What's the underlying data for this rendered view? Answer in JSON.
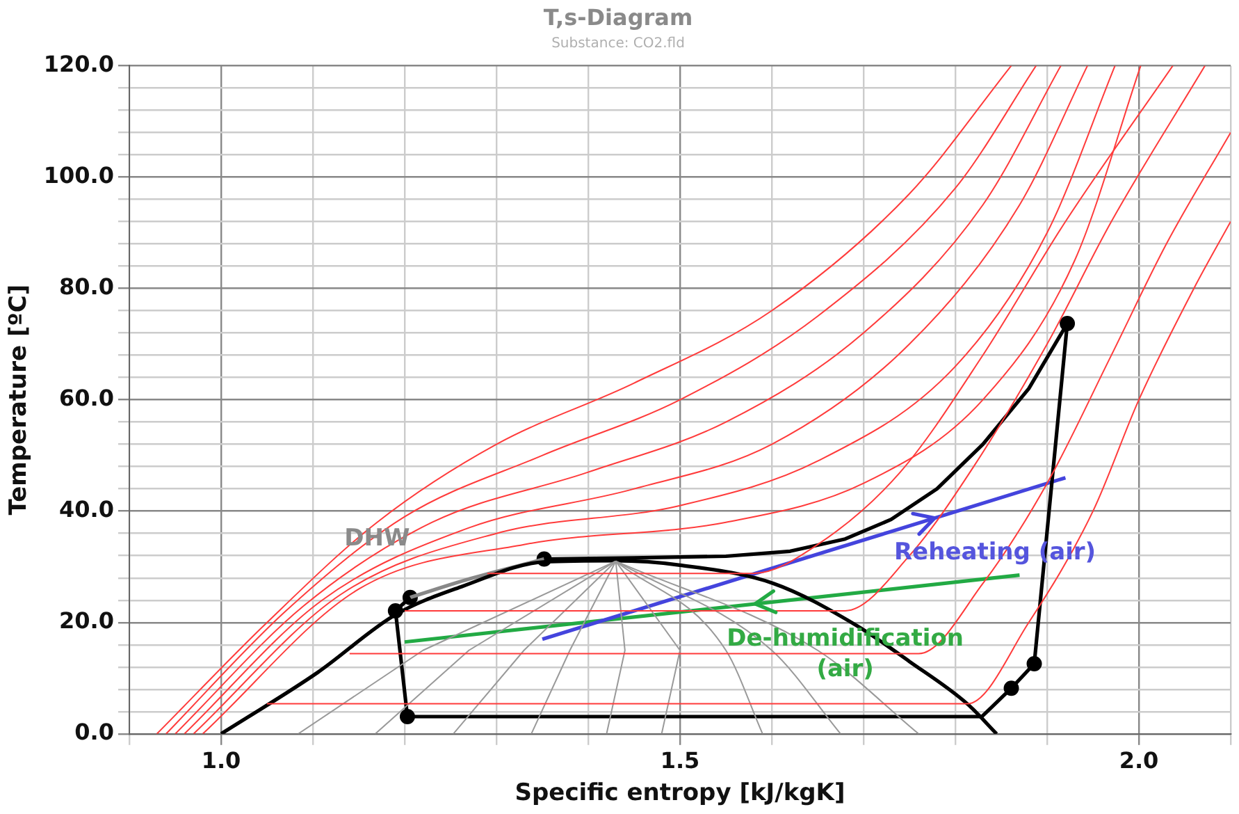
{
  "chart_data": {
    "type": "line",
    "title": "T,s-Diagram",
    "subtitle": "Substance: CO2.fld",
    "xlabel": "Specific entropy [kJ/kgK]",
    "ylabel": "Temperature [ºC]",
    "xlim": [
      0.9,
      2.1
    ],
    "ylim": [
      0,
      120
    ],
    "xticks": [
      {
        "value": 0.9,
        "label": null
      },
      {
        "value": 1.0,
        "label": "1.0"
      },
      {
        "value": 1.1,
        "label": null
      },
      {
        "value": 1.2,
        "label": null
      },
      {
        "value": 1.3,
        "label": null
      },
      {
        "value": 1.4,
        "label": null
      },
      {
        "value": 1.5,
        "label": "1.5"
      },
      {
        "value": 1.6,
        "label": null
      },
      {
        "value": 1.7,
        "label": null
      },
      {
        "value": 1.8,
        "label": null
      },
      {
        "value": 1.9,
        "label": null
      },
      {
        "value": 2.0,
        "label": "2.0"
      },
      {
        "value": 2.1,
        "label": null
      }
    ],
    "yticks": [
      {
        "value": 0,
        "label": "0.0"
      },
      {
        "value": 4,
        "label": null
      },
      {
        "value": 8,
        "label": null
      },
      {
        "value": 12,
        "label": null
      },
      {
        "value": 16,
        "label": null
      },
      {
        "value": 20,
        "label": "20.0"
      },
      {
        "value": 24,
        "label": null
      },
      {
        "value": 28,
        "label": null
      },
      {
        "value": 32,
        "label": null
      },
      {
        "value": 36,
        "label": null
      },
      {
        "value": 40,
        "label": "40.0"
      },
      {
        "value": 44,
        "label": null
      },
      {
        "value": 48,
        "label": null
      },
      {
        "value": 52,
        "label": null
      },
      {
        "value": 56,
        "label": null
      },
      {
        "value": 60,
        "label": "60.0"
      },
      {
        "value": 64,
        "label": null
      },
      {
        "value": 68,
        "label": null
      },
      {
        "value": 72,
        "label": null
      },
      {
        "value": 76,
        "label": null
      },
      {
        "value": 80,
        "label": "80.0"
      },
      {
        "value": 84,
        "label": null
      },
      {
        "value": 88,
        "label": null
      },
      {
        "value": 92,
        "label": null
      },
      {
        "value": 96,
        "label": null
      },
      {
        "value": 100,
        "label": "100.0"
      },
      {
        "value": 104,
        "label": null
      },
      {
        "value": 108,
        "label": null
      },
      {
        "value": 112,
        "label": null
      },
      {
        "value": 116,
        "label": null
      },
      {
        "value": 120,
        "label": "120.0"
      }
    ],
    "grid": true,
    "legend": false,
    "marker": "none",
    "line_style": "solid",
    "series": [
      {
        "color": "#ff3b3b",
        "x": [
          0.93,
          1.05,
          1.17,
          1.3,
          1.45,
          1.6,
          1.75,
          1.861
        ],
        "values": [
          0,
          20,
          38,
          52,
          63,
          76,
          97,
          120
        ]
      },
      {
        "color": "#ff3b3b",
        "x": [
          0.94,
          1.07,
          1.2,
          1.35,
          1.5,
          1.65,
          1.8,
          1.888
        ],
        "values": [
          0,
          22,
          39,
          50,
          60,
          75,
          98,
          120
        ]
      },
      {
        "color": "#ff3b3b",
        "x": [
          0.95,
          1.09,
          1.23,
          1.4,
          1.55,
          1.7,
          1.83,
          1.915
        ],
        "values": [
          0,
          23,
          38,
          47,
          56,
          72,
          95,
          120
        ]
      },
      {
        "color": "#ff3b3b",
        "x": [
          0.96,
          1.11,
          1.27,
          1.45,
          1.6,
          1.75,
          1.87,
          1.944
        ],
        "values": [
          0,
          24,
          37,
          44,
          52,
          70,
          95,
          120
        ]
      },
      {
        "color": "#ff3b3b",
        "x": [
          0.97,
          1.13,
          1.3,
          1.5,
          1.65,
          1.8,
          1.9,
          1.974
        ],
        "values": [
          0,
          25,
          36,
          41,
          49,
          66,
          90,
          120
        ]
      },
      {
        "color": "#ff3b3b",
        "x": [
          0.98,
          1.15,
          1.33,
          1.55,
          1.7,
          1.83,
          1.93,
          2.002
        ],
        "values": [
          0,
          26,
          34,
          38,
          45,
          60,
          85,
          120
        ]
      },
      {
        "color": "#ff3b3b",
        "x": [
          1.29,
          1.58,
          1.65,
          1.74,
          1.83,
          1.92,
          2.037
        ],
        "values": [
          28.8,
          28.8,
          34,
          47,
          68,
          92,
          120
        ]
      },
      {
        "color": "#ff3b3b",
        "x": [
          1.2,
          1.68,
          1.75,
          1.82,
          1.9,
          1.97,
          2.072
        ],
        "values": [
          22.1,
          22.1,
          32,
          48,
          70,
          92,
          120
        ]
      },
      {
        "color": "#ff3b3b",
        "x": [
          1.14,
          1.76,
          1.83,
          1.9,
          1.97,
          2.03,
          2.1
        ],
        "values": [
          14.4,
          14.4,
          27,
          45,
          68,
          88,
          108
        ]
      },
      {
        "color": "#ff3b3b",
        "x": [
          1.05,
          1.813,
          1.88,
          1.95,
          2.0,
          2.06,
          2.1
        ],
        "values": [
          5.4,
          5.4,
          20,
          40,
          60,
          80,
          92
        ]
      },
      {
        "color": "#999999",
        "x": [
          1.43,
          1.22,
          1.084
        ],
        "values": [
          31,
          15,
          0
        ]
      },
      {
        "color": "#999999",
        "x": [
          1.43,
          1.27,
          1.168
        ],
        "values": [
          31,
          15,
          0
        ]
      },
      {
        "color": "#999999",
        "x": [
          1.43,
          1.33,
          1.253
        ],
        "values": [
          31,
          15,
          0
        ]
      },
      {
        "color": "#999999",
        "x": [
          1.43,
          1.38,
          1.338
        ],
        "values": [
          31,
          15,
          0
        ]
      },
      {
        "color": "#999999",
        "x": [
          1.43,
          1.44,
          1.42
        ],
        "values": [
          31,
          15,
          0
        ]
      },
      {
        "color": "#999999",
        "x": [
          1.43,
          1.5,
          1.48
        ],
        "values": [
          31,
          15,
          0
        ]
      },
      {
        "color": "#999999",
        "x": [
          1.43,
          1.55,
          1.59
        ],
        "values": [
          31,
          15,
          0
        ]
      },
      {
        "color": "#999999",
        "x": [
          1.43,
          1.6,
          1.675
        ],
        "values": [
          31,
          15,
          0
        ]
      },
      {
        "color": "#999999",
        "x": [
          1.43,
          1.65,
          1.76
        ],
        "values": [
          31,
          15,
          0
        ]
      },
      {
        "color": "#000000",
        "x": [
          1.0,
          1.105,
          1.19,
          1.263,
          1.353,
          1.43,
          1.5,
          1.602,
          1.691,
          1.75,
          1.813,
          1.845
        ],
        "values": [
          0,
          11,
          21.4,
          26.5,
          30.9,
          31.1,
          30.3,
          27,
          19.6,
          13,
          5.4,
          0
        ]
      },
      {
        "color": "#000000",
        "x": [
          1.352,
          1.45,
          1.55,
          1.62,
          1.68,
          1.73,
          1.78,
          1.83,
          1.88,
          1.922,
          1.886,
          1.861,
          1.829,
          1.203,
          1.19,
          1.206
        ],
        "values": [
          31.4,
          31.6,
          31.9,
          32.8,
          35,
          38.5,
          44,
          52,
          62,
          73.7,
          12.6,
          8.2,
          3.1,
          3.1,
          22.1,
          24.5
        ]
      },
      {
        "color": "#888888",
        "x": [
          1.206,
          1.27,
          1.352
        ],
        "values": [
          24.5,
          27.8,
          31.4
        ]
      },
      {
        "color": "#4444dd",
        "x": [
          1.35,
          1.92
        ],
        "values": [
          17,
          46
        ]
      },
      {
        "color": "#22aa44",
        "x": [
          1.87,
          1.2
        ],
        "values": [
          28.5,
          16.5
        ]
      },
      {
        "type": "scatter",
        "marker": "circle",
        "color": "#000000",
        "x": [
          1.19,
          1.206,
          1.352,
          1.922,
          1.886,
          1.861,
          1.203
        ],
        "values": [
          22.1,
          24.5,
          31.4,
          73.7,
          12.6,
          8.2,
          3.1
        ]
      }
    ],
    "annotations": [
      {
        "text": "DHW",
        "x": 1.17,
        "y": 35
      },
      "Reheating (air)",
      "De-humidification\n(air)"
    ]
  }
}
